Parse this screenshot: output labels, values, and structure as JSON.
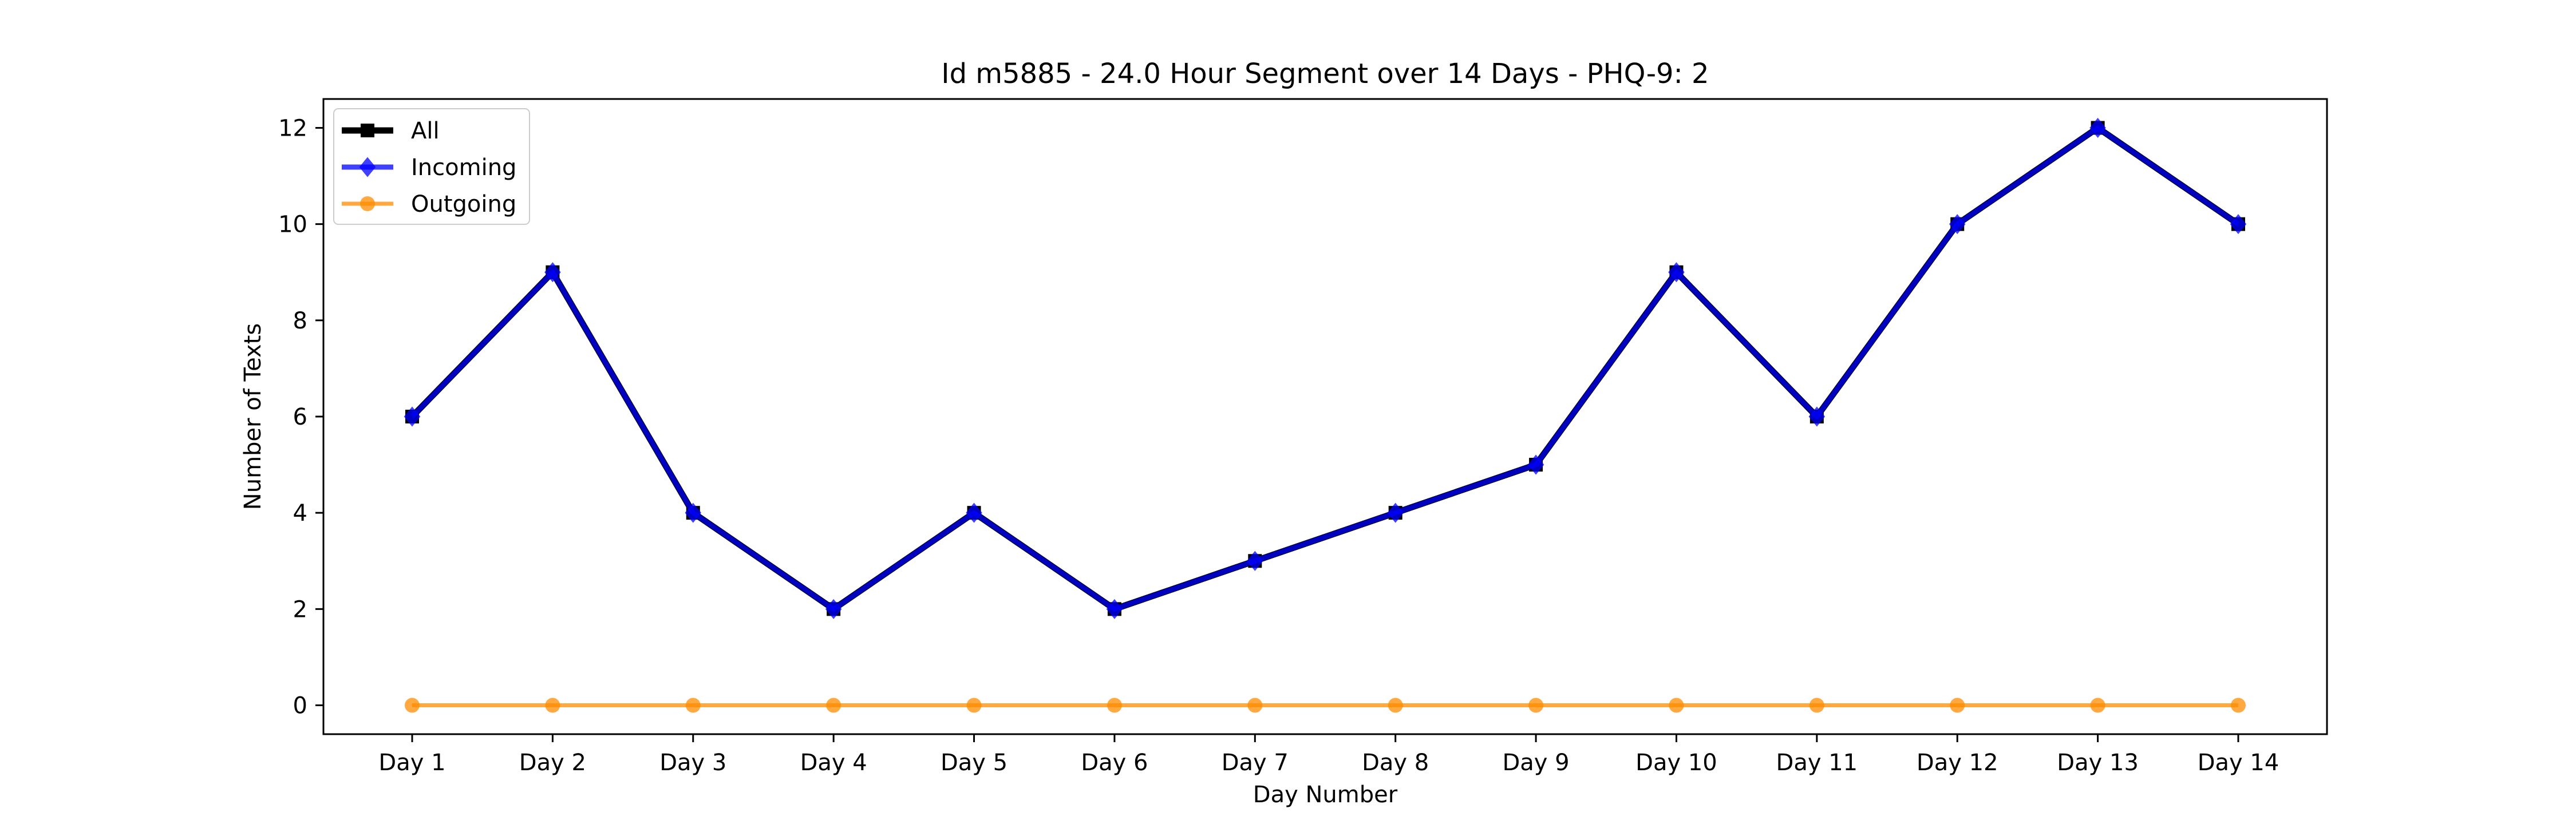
{
  "chart_data": {
    "type": "line",
    "title": "Id m5885 - 24.0 Hour Segment over 14 Days - PHQ-9: 2",
    "xlabel": "Day Number",
    "ylabel": "Number of Texts",
    "categories": [
      "Day 1",
      "Day 2",
      "Day 3",
      "Day 4",
      "Day 5",
      "Day 6",
      "Day 7",
      "Day 8",
      "Day 9",
      "Day 10",
      "Day 11",
      "Day 12",
      "Day 13",
      "Day 14"
    ],
    "yticks": [
      "0",
      "2",
      "4",
      "6",
      "8",
      "10",
      "12"
    ],
    "ylim": [
      -0.6,
      12.6
    ],
    "grid": false,
    "legend_position": "top-left",
    "series": [
      {
        "name": "All",
        "color": "#000000",
        "marker": "square",
        "values": [
          6,
          9,
          4,
          2,
          4,
          2,
          3,
          4,
          5,
          9,
          6,
          10,
          12,
          10
        ]
      },
      {
        "name": "Incoming",
        "color": "#0000ff",
        "marker": "diamond",
        "values": [
          6,
          9,
          4,
          2,
          4,
          2,
          3,
          4,
          5,
          9,
          6,
          10,
          12,
          10
        ]
      },
      {
        "name": "Outgoing",
        "color": "#ff8c00",
        "marker": "circle",
        "values": [
          0,
          0,
          0,
          0,
          0,
          0,
          0,
          0,
          0,
          0,
          0,
          0,
          0,
          0
        ]
      }
    ]
  }
}
